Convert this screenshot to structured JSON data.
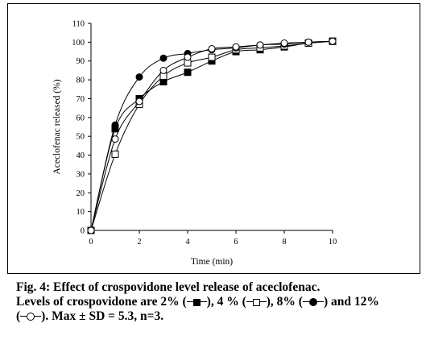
{
  "chart_data": {
    "type": "line",
    "title": "",
    "xlabel": "Time (min)",
    "ylabel": "Aceclofenac released (%)",
    "xlim": [
      0,
      10
    ],
    "ylim": [
      0,
      110
    ],
    "xticks": [
      0,
      2,
      4,
      6,
      8,
      10
    ],
    "yticks": [
      0,
      10,
      20,
      30,
      40,
      50,
      60,
      70,
      80,
      90,
      100,
      110
    ],
    "grid": false,
    "legend": "none",
    "x": [
      0,
      1,
      2,
      3,
      4,
      5,
      6,
      7,
      8,
      9,
      10
    ],
    "series": [
      {
        "marker": "filled-square",
        "values": [
          0,
          54,
          70,
          79,
          84,
          90,
          95,
          96,
          97.5,
          99.5,
          100.5
        ]
      },
      {
        "marker": "open-square",
        "values": [
          0,
          40.5,
          67,
          82,
          89,
          92,
          96,
          97,
          98,
          99.5,
          100.5
        ]
      },
      {
        "marker": "filled-circle",
        "values": [
          0,
          56,
          81.5,
          91.5,
          94,
          96,
          97,
          98.5,
          99,
          100,
          100.5
        ]
      },
      {
        "marker": "open-circle",
        "values": [
          0,
          48.5,
          68.5,
          85,
          92,
          96.5,
          97.5,
          98.5,
          99.5,
          100,
          100.5
        ]
      }
    ]
  },
  "caption": {
    "fig_label": "Fig. 4: Effect of crospovidone level release of aceclofenac.",
    "line2_start": "Levels of crospovidone are 2% (",
    "line2_p2": "), 4 % (",
    "line2_p3": "), 8% (",
    "line2_p4": ") and 12%",
    "line3_start": "(",
    "line3_end": "). Max ± SD = 5.3, n=3."
  }
}
